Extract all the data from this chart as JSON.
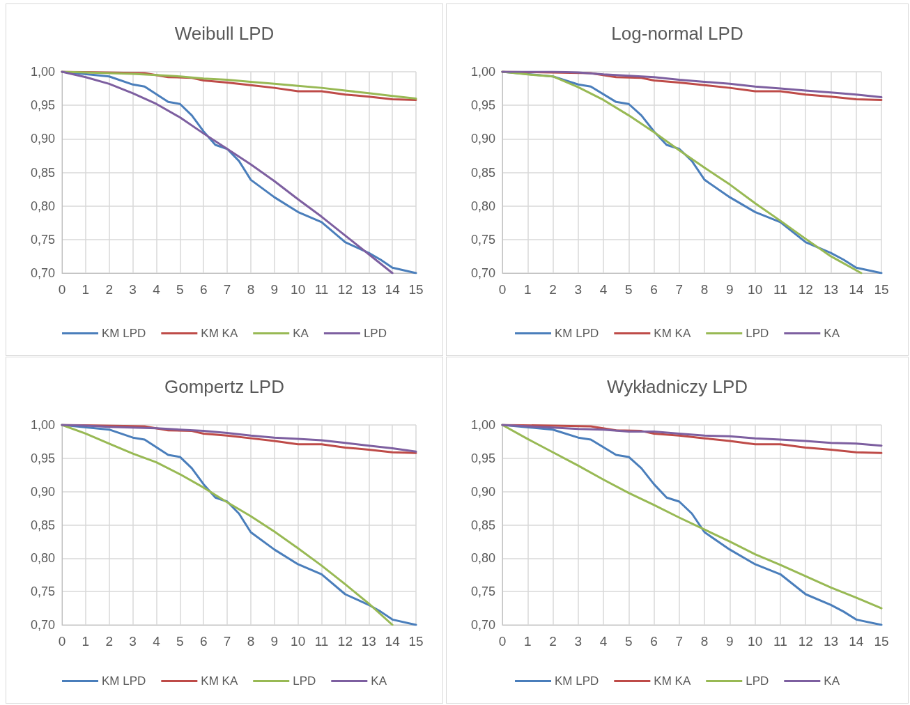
{
  "chart_data": [
    {
      "type": "line",
      "title": "Weibull LPD",
      "xlim": [
        0,
        15
      ],
      "xticks": [
        0,
        1,
        2,
        3,
        4,
        5,
        6,
        7,
        8,
        9,
        10,
        11,
        12,
        13,
        14,
        15
      ],
      "ylim": [
        0.7,
        1
      ],
      "yticks": [
        {
          "value": 0.7,
          "label": "0,70"
        },
        {
          "value": 0.75,
          "label": "0,75"
        },
        {
          "value": 0.8,
          "label": "0,80"
        },
        {
          "value": 0.85,
          "label": "0,85"
        },
        {
          "value": 0.9,
          "label": "0,90"
        },
        {
          "value": 0.95,
          "label": "0,95"
        },
        {
          "value": 1,
          "label": "1,00"
        }
      ],
      "grid": true,
      "legend": "bottom",
      "marker": "none",
      "line_style": "solid",
      "series": [
        {
          "name": "KM LPD",
          "color": "#4a7ebb",
          "x": [
            0,
            2,
            3,
            3.5,
            4.5,
            5,
            5.5,
            6,
            6.5,
            7,
            7.5,
            8,
            9,
            10,
            11,
            12,
            13,
            13.5,
            14,
            15
          ],
          "values": [
            1,
            0.993,
            0.981,
            0.978,
            0.955,
            0.952,
            0.935,
            0.911,
            0.891,
            0.885,
            0.867,
            0.839,
            0.813,
            0.791,
            0.776,
            0.746,
            0.73,
            0.72,
            0.708,
            0.7
          ]
        },
        {
          "name": "KM KA",
          "color": "#be4b48",
          "x": [
            0,
            3.5,
            4.5,
            5.5,
            6,
            7,
            8,
            9,
            10,
            11,
            12,
            13,
            14,
            15
          ],
          "values": [
            1,
            0.998,
            0.992,
            0.991,
            0.987,
            0.984,
            0.98,
            0.976,
            0.971,
            0.971,
            0.966,
            0.963,
            0.959,
            0.958
          ]
        },
        {
          "name": "KA",
          "color": "#98b954",
          "x": [
            0,
            1,
            2,
            3,
            4,
            5,
            6,
            7,
            8,
            9,
            10,
            11,
            12,
            13,
            14,
            15
          ],
          "values": [
            1,
            0.999,
            0.998,
            0.997,
            0.995,
            0.993,
            0.99,
            0.988,
            0.985,
            0.982,
            0.979,
            0.976,
            0.972,
            0.968,
            0.964,
            0.96
          ]
        },
        {
          "name": "LPD",
          "color": "#7d5fa0",
          "x": [
            0,
            1,
            2,
            3,
            4,
            5,
            6,
            7,
            8,
            9,
            10,
            11,
            12,
            13,
            14
          ],
          "values": [
            1,
            0.992,
            0.982,
            0.968,
            0.952,
            0.932,
            0.908,
            0.885,
            0.862,
            0.837,
            0.81,
            0.784,
            0.756,
            0.728,
            0.7
          ]
        }
      ]
    },
    {
      "type": "line",
      "title": "Log-normal LPD",
      "xlim": [
        0,
        15
      ],
      "xticks": [
        0,
        1,
        2,
        3,
        4,
        5,
        6,
        7,
        8,
        9,
        10,
        11,
        12,
        13,
        14,
        15
      ],
      "ylim": [
        0.7,
        1
      ],
      "yticks": [
        {
          "value": 0.7,
          "label": "0,70"
        },
        {
          "value": 0.75,
          "label": "0,75"
        },
        {
          "value": 0.8,
          "label": "0,80"
        },
        {
          "value": 0.85,
          "label": "0,85"
        },
        {
          "value": 0.9,
          "label": "0,90"
        },
        {
          "value": 0.95,
          "label": "0,95"
        },
        {
          "value": 1,
          "label": "1,00"
        }
      ],
      "grid": true,
      "legend": "bottom",
      "marker": "none",
      "line_style": "solid",
      "series": [
        {
          "name": "KM LPD",
          "color": "#4a7ebb",
          "x": [
            0,
            2,
            3,
            3.5,
            4.5,
            5,
            5.5,
            6,
            6.5,
            7,
            7.5,
            8,
            9,
            10,
            11,
            12,
            13,
            13.5,
            14,
            15
          ],
          "values": [
            1,
            0.993,
            0.981,
            0.978,
            0.955,
            0.952,
            0.935,
            0.911,
            0.891,
            0.885,
            0.867,
            0.839,
            0.813,
            0.791,
            0.776,
            0.746,
            0.73,
            0.72,
            0.708,
            0.7
          ]
        },
        {
          "name": "KM KA",
          "color": "#be4b48",
          "x": [
            0,
            3.5,
            4.5,
            5.5,
            6,
            7,
            8,
            9,
            10,
            11,
            12,
            13,
            14,
            15
          ],
          "values": [
            1,
            0.998,
            0.992,
            0.991,
            0.987,
            0.984,
            0.98,
            0.976,
            0.971,
            0.971,
            0.966,
            0.963,
            0.959,
            0.958
          ]
        },
        {
          "name": "LPD",
          "color": "#98b954",
          "x": [
            0,
            1,
            2,
            3,
            4,
            5,
            6,
            7,
            8,
            9,
            10,
            11,
            12,
            13,
            14.2
          ],
          "values": [
            1,
            0.996,
            0.993,
            0.977,
            0.958,
            0.935,
            0.91,
            0.883,
            0.857,
            0.832,
            0.804,
            0.778,
            0.751,
            0.725,
            0.7
          ]
        },
        {
          "name": "KA",
          "color": "#7d5fa0",
          "x": [
            0,
            1,
            2,
            3,
            4,
            5,
            6,
            7,
            8,
            9,
            10,
            11,
            12,
            13,
            14,
            15
          ],
          "values": [
            1,
            1,
            1,
            0.999,
            0.996,
            0.994,
            0.992,
            0.988,
            0.985,
            0.982,
            0.978,
            0.975,
            0.972,
            0.969,
            0.966,
            0.962
          ]
        }
      ]
    },
    {
      "type": "line",
      "title": "Gompertz LPD",
      "xlim": [
        0,
        15
      ],
      "xticks": [
        0,
        1,
        2,
        3,
        4,
        5,
        6,
        7,
        8,
        9,
        10,
        11,
        12,
        13,
        14,
        15
      ],
      "ylim": [
        0.7,
        1
      ],
      "yticks": [
        {
          "value": 0.7,
          "label": "0,70"
        },
        {
          "value": 0.75,
          "label": "0,75"
        },
        {
          "value": 0.8,
          "label": "0,80"
        },
        {
          "value": 0.85,
          "label": "0,85"
        },
        {
          "value": 0.9,
          "label": "0,90"
        },
        {
          "value": 0.95,
          "label": "0,95"
        },
        {
          "value": 1,
          "label": "1,00"
        }
      ],
      "grid": true,
      "legend": "bottom",
      "marker": "none",
      "line_style": "solid",
      "series": [
        {
          "name": "KM LPD",
          "color": "#4a7ebb",
          "x": [
            0,
            2,
            3,
            3.5,
            4.5,
            5,
            5.5,
            6,
            6.5,
            7,
            7.5,
            8,
            9,
            10,
            11,
            12,
            13,
            13.5,
            14,
            15
          ],
          "values": [
            1,
            0.993,
            0.981,
            0.978,
            0.955,
            0.952,
            0.935,
            0.911,
            0.891,
            0.885,
            0.867,
            0.839,
            0.813,
            0.791,
            0.776,
            0.746,
            0.73,
            0.72,
            0.708,
            0.7
          ]
        },
        {
          "name": "KM KA",
          "color": "#be4b48",
          "x": [
            0,
            3.5,
            4.5,
            5.5,
            6,
            7,
            8,
            9,
            10,
            11,
            12,
            13,
            14,
            15
          ],
          "values": [
            1,
            0.998,
            0.992,
            0.991,
            0.987,
            0.984,
            0.98,
            0.976,
            0.971,
            0.971,
            0.966,
            0.963,
            0.959,
            0.958
          ]
        },
        {
          "name": "LPD",
          "color": "#98b954",
          "x": [
            0,
            1,
            2,
            3,
            4,
            5,
            6,
            7,
            8,
            9,
            10,
            11,
            12,
            13,
            14
          ],
          "values": [
            1,
            0.987,
            0.972,
            0.957,
            0.944,
            0.926,
            0.906,
            0.884,
            0.863,
            0.84,
            0.815,
            0.789,
            0.761,
            0.732,
            0.7
          ]
        },
        {
          "name": "KA",
          "color": "#7d5fa0",
          "x": [
            0,
            1,
            2,
            3,
            4,
            5,
            6,
            7,
            8,
            9,
            10,
            11,
            12,
            13,
            14,
            15
          ],
          "values": [
            1,
            0.999,
            0.997,
            0.996,
            0.995,
            0.993,
            0.991,
            0.988,
            0.984,
            0.981,
            0.979,
            0.977,
            0.973,
            0.969,
            0.965,
            0.96
          ]
        }
      ]
    },
    {
      "type": "line",
      "title": "Wykładniczy LPD",
      "xlim": [
        0,
        15
      ],
      "xticks": [
        0,
        1,
        2,
        3,
        4,
        5,
        6,
        7,
        8,
        9,
        10,
        11,
        12,
        13,
        14,
        15
      ],
      "ylim": [
        0.7,
        1
      ],
      "yticks": [
        {
          "value": 0.7,
          "label": "0,70"
        },
        {
          "value": 0.75,
          "label": "0,75"
        },
        {
          "value": 0.8,
          "label": "0,80"
        },
        {
          "value": 0.85,
          "label": "0,85"
        },
        {
          "value": 0.9,
          "label": "0,90"
        },
        {
          "value": 0.95,
          "label": "0,95"
        },
        {
          "value": 1,
          "label": "1,00"
        }
      ],
      "grid": true,
      "legend": "bottom",
      "marker": "none",
      "line_style": "solid",
      "series": [
        {
          "name": "KM LPD",
          "color": "#4a7ebb",
          "x": [
            0,
            2,
            3,
            3.5,
            4.5,
            5,
            5.5,
            6,
            6.5,
            7,
            7.5,
            8,
            9,
            10,
            11,
            12,
            13,
            13.5,
            14,
            15
          ],
          "values": [
            1,
            0.993,
            0.981,
            0.978,
            0.955,
            0.952,
            0.935,
            0.911,
            0.891,
            0.885,
            0.867,
            0.839,
            0.813,
            0.791,
            0.776,
            0.746,
            0.73,
            0.72,
            0.708,
            0.7
          ]
        },
        {
          "name": "KM KA",
          "color": "#be4b48",
          "x": [
            0,
            3.5,
            4.5,
            5.5,
            6,
            7,
            8,
            9,
            10,
            11,
            12,
            13,
            14,
            15
          ],
          "values": [
            1,
            0.998,
            0.992,
            0.991,
            0.987,
            0.984,
            0.98,
            0.976,
            0.971,
            0.971,
            0.966,
            0.963,
            0.959,
            0.958
          ]
        },
        {
          "name": "LPD",
          "color": "#98b954",
          "x": [
            0,
            1,
            2,
            3,
            4,
            5,
            6,
            7,
            8,
            9,
            10,
            11,
            12,
            13,
            14,
            15
          ],
          "values": [
            1,
            0.979,
            0.959,
            0.939,
            0.918,
            0.898,
            0.88,
            0.861,
            0.843,
            0.825,
            0.806,
            0.79,
            0.773,
            0.756,
            0.741,
            0.725
          ]
        },
        {
          "name": "KA",
          "color": "#7d5fa0",
          "x": [
            0,
            1,
            2,
            3,
            4,
            5,
            6,
            7,
            8,
            9,
            10,
            11,
            12,
            13,
            14,
            15
          ],
          "values": [
            1,
            0.998,
            0.996,
            0.994,
            0.993,
            0.99,
            0.99,
            0.987,
            0.984,
            0.983,
            0.98,
            0.978,
            0.976,
            0.973,
            0.972,
            0.969
          ]
        }
      ]
    }
  ]
}
